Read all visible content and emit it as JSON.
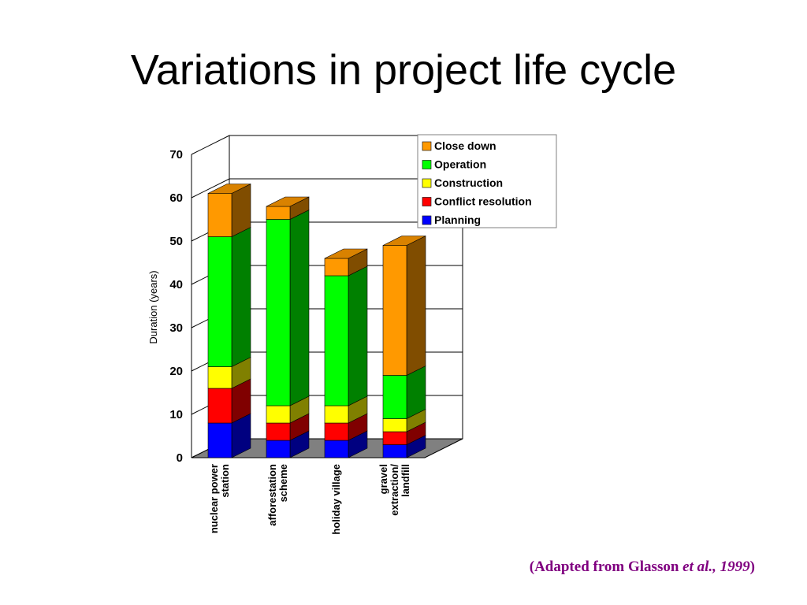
{
  "slide": {
    "title": "Variations in project life cycle",
    "citation": {
      "prefix": "(Adapted from Glasson ",
      "italic": "et al., 1999",
      "suffix": ")"
    }
  },
  "chart_data": {
    "type": "bar",
    "stacked": true,
    "three_d": true,
    "categories": [
      [
        "nuclear power",
        "station"
      ],
      [
        "afforestation",
        "scheme"
      ],
      [
        "holiday village"
      ],
      [
        "gravel",
        "extraction/",
        "landfill"
      ]
    ],
    "series": [
      {
        "name": "Planning",
        "color": "#0000ff",
        "values": [
          8,
          4,
          4,
          3
        ]
      },
      {
        "name": "Conflict resolution",
        "color": "#ff0000",
        "values": [
          8,
          4,
          4,
          3
        ]
      },
      {
        "name": "Construction",
        "color": "#ffff00",
        "values": [
          5,
          4,
          4,
          3
        ]
      },
      {
        "name": "Operation",
        "color": "#00ff00",
        "values": [
          30,
          43,
          30,
          10
        ]
      },
      {
        "name": "Close down",
        "color": "#ff9900",
        "values": [
          10,
          3,
          4,
          30
        ]
      }
    ],
    "legend_order": [
      "Close down",
      "Operation",
      "Construction",
      "Conflict resolution",
      "Planning"
    ],
    "ylabel": "Duration (years)",
    "xlabel": "",
    "ylim": [
      0,
      70
    ],
    "yticks": [
      0,
      10,
      20,
      30,
      40,
      50,
      60,
      70
    ],
    "grid": true,
    "legend_position": "top-right"
  }
}
